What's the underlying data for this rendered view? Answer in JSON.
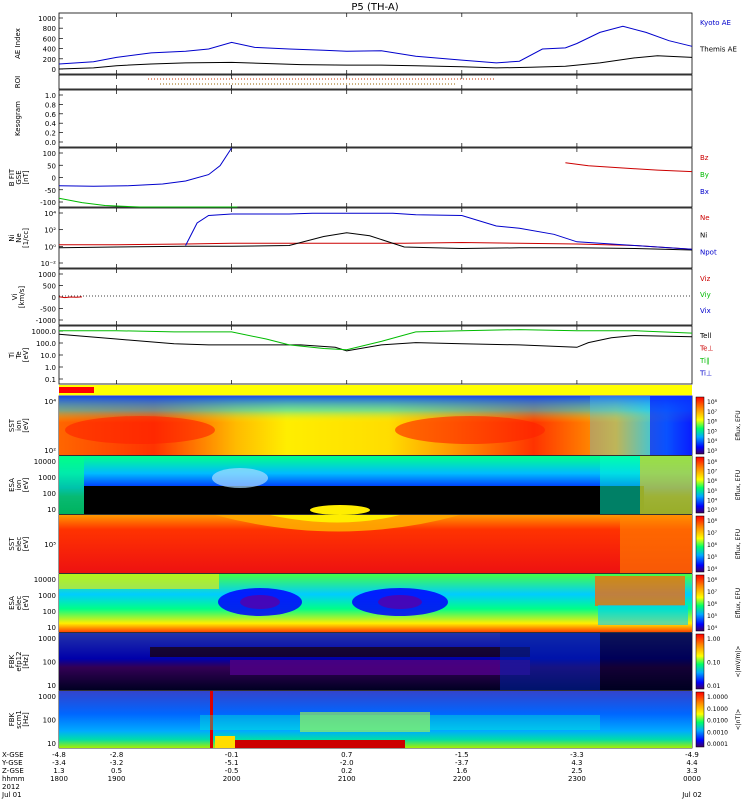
{
  "title": "P5 (TH-A)",
  "time_axis": {
    "start_hour": 18.5,
    "end_hour": 24.0,
    "ticks": [
      {
        "label": "1900",
        "hour": 19.0,
        "xgse": "-2.8",
        "ygse": "-3.2",
        "zgse": "0.5"
      },
      {
        "label": "2000",
        "hour": 20.0,
        "xgse": "-0.1",
        "ygse": "-5.1",
        "zgse": "-0.5"
      },
      {
        "label": "2100",
        "hour": 21.0,
        "xgse": "0.7",
        "ygse": "-2.0",
        "zgse": "0.2"
      },
      {
        "label": "2200",
        "hour": 22.0,
        "xgse": "-1.5",
        "ygse": "-3.7",
        "zgse": "1.6"
      },
      {
        "label": "2300",
        "hour": 23.0,
        "xgse": "-3.3",
        "ygse": "4.3",
        "zgse": "2.5"
      }
    ],
    "start": {
      "label": "1800",
      "xgse": "-4.8",
      "ygse": "-3.4",
      "zgse": "1.3"
    },
    "end": {
      "label": "0000",
      "xgse": "-4.9",
      "ygse": "4.4",
      "zgse": "3.3"
    },
    "row_labels": [
      "X-GSE",
      "Y-GSE",
      "Z-GSE",
      "hhmm",
      "2012"
    ],
    "start_date": "Jul 01",
    "end_date": "Jul 02"
  },
  "colors": {
    "blue": "#0000cc",
    "green": "#00bb00",
    "red": "#cc0000",
    "black": "#000000"
  },
  "chart_data": [
    {
      "type": "line",
      "ylabel": "AE Index",
      "yticks": [
        "1000",
        "800",
        "600",
        "400",
        "200",
        "0"
      ],
      "ylim": [
        -50,
        1050
      ],
      "series": [
        {
          "name": "Kyoto AE",
          "color": "#0000cc",
          "x": [
            18.5,
            18.8,
            19.0,
            19.3,
            19.6,
            19.8,
            20.0,
            20.2,
            20.5,
            20.8,
            21.0,
            21.3,
            21.6,
            22.0,
            22.3,
            22.5,
            22.7,
            22.9,
            23.0,
            23.2,
            23.4,
            23.6,
            23.8,
            24.0
          ],
          "y": [
            130,
            170,
            250,
            330,
            360,
            400,
            520,
            430,
            400,
            380,
            360,
            370,
            270,
            200,
            150,
            180,
            400,
            420,
            500,
            700,
            810,
            700,
            550,
            450
          ]
        },
        {
          "name": "Themis AE",
          "color": "#000000",
          "x": [
            18.5,
            18.8,
            19.0,
            19.3,
            19.6,
            20.0,
            20.3,
            20.6,
            21.0,
            21.3,
            21.6,
            22.0,
            22.3,
            22.6,
            22.9,
            23.2,
            23.5,
            23.7,
            24.0
          ],
          "y": [
            40,
            60,
            100,
            130,
            150,
            160,
            140,
            120,
            110,
            110,
            100,
            80,
            60,
            70,
            90,
            150,
            240,
            280,
            250
          ]
        }
      ]
    },
    {
      "type": "line",
      "ylabel": "ROI"
    },
    {
      "type": "line",
      "ylabel": "Kesogram",
      "yticks": [
        "1.0",
        "0.8",
        "0.6",
        "0.4",
        "0.2",
        "0.0"
      ],
      "ylim": [
        0,
        1
      ]
    },
    {
      "type": "line",
      "ylabel": "B FIT\nGSE\n[nT]",
      "yticks": [
        "100",
        "50",
        "0",
        "-50",
        "-100"
      ],
      "ylim": [
        -100,
        100
      ],
      "series": [
        {
          "name": "Bz",
          "color": "#cc0000",
          "x": [
            22.9,
            23.1,
            23.3,
            23.5,
            23.7,
            24.0
          ],
          "y": [
            50,
            40,
            35,
            30,
            25,
            20
          ]
        },
        {
          "name": "By",
          "color": "#00bb00",
          "x": [
            18.5,
            18.7,
            18.9,
            19.2,
            19.6,
            20.0,
            20.05
          ],
          "y": [
            -70,
            -85,
            -95,
            -100,
            -100,
            -100,
            -100
          ]
        },
        {
          "name": "Bx",
          "color": "#0000cc",
          "x": [
            18.5,
            18.8,
            19.1,
            19.4,
            19.6,
            19.8,
            19.9,
            20.0
          ],
          "y": [
            -28,
            -30,
            -28,
            -22,
            -12,
            10,
            40,
            100
          ]
        }
      ]
    },
    {
      "type": "line",
      "ylabel": "Ni\nNe\n[1/cc]",
      "yticks": [
        "10⁴",
        "10²",
        "10⁰",
        "10⁻²"
      ],
      "ylim": [
        -3,
        5
      ],
      "series": [
        {
          "name": "Ne",
          "color": "#cc0000",
          "x": [
            18.5,
            19.0,
            19.6,
            20.0,
            20.5,
            21.0,
            21.5,
            22.0,
            22.5,
            23.0,
            23.5,
            24.0
          ],
          "y": [
            0.1,
            0.1,
            0.2,
            0.3,
            0.3,
            0.3,
            0.3,
            0.4,
            0.3,
            0.2,
            0.0,
            -0.5
          ]
        },
        {
          "name": "Ni",
          "color": "#000000",
          "x": [
            18.5,
            19.0,
            19.6,
            20.0,
            20.5,
            20.8,
            21.0,
            21.2,
            21.5,
            22.0,
            22.5,
            23.0,
            23.5,
            24.0
          ],
          "y": [
            -0.3,
            -0.2,
            -0.1,
            -0.1,
            0.0,
            1.2,
            1.7,
            1.3,
            -0.2,
            -0.4,
            -0.3,
            -0.3,
            -0.4,
            -0.6
          ]
        },
        {
          "name": "Npot",
          "color": "#0000cc",
          "x": [
            19.6,
            19.7,
            19.8,
            20.0,
            20.5,
            20.7,
            21.4,
            21.6,
            22.0,
            22.3,
            22.5,
            22.8,
            23.0,
            23.5,
            24.0
          ],
          "y": [
            0.0,
            3.0,
            4.0,
            4.2,
            4.2,
            4.3,
            4.3,
            4.1,
            4.0,
            2.6,
            2.3,
            1.5,
            0.5,
            0.0,
            -0.5
          ]
        }
      ]
    },
    {
      "type": "line",
      "ylabel": "Vi\n[km/s]",
      "yticks": [
        "1000",
        "500",
        "0",
        "-500",
        "-1000"
      ],
      "ylim": [
        -1000,
        1000
      ],
      "series": [
        {
          "name": "Viz",
          "color": "#cc0000",
          "x": [
            18.5,
            18.55,
            18.6,
            18.65,
            18.7
          ],
          "y": [
            10,
            -20,
            0,
            -10,
            5
          ]
        },
        {
          "name": "Viy",
          "color": "#00bb00",
          "x": [],
          "y": []
        },
        {
          "name": "Vix",
          "color": "#0000cc",
          "x": [],
          "y": []
        }
      ]
    },
    {
      "type": "line",
      "ylabel": "Ti\nTe\n[eV]",
      "yticks": [
        "1000.0",
        "100.0",
        "10.0",
        "1.0",
        "0.1"
      ],
      "ylim": [
        -1.3,
        3.6
      ],
      "series": [
        {
          "name": "Tell",
          "color": "#000000",
          "x": [
            18.5,
            19.0,
            19.5,
            19.8,
            20.0,
            20.3,
            20.6,
            20.9,
            21.0,
            21.3,
            21.6,
            22.0,
            22.5,
            23.0,
            23.1,
            23.3,
            23.5,
            24.0
          ],
          "y": [
            2.9,
            2.5,
            2.1,
            2.0,
            2.0,
            2.0,
            2.0,
            1.8,
            1.5,
            2.0,
            2.2,
            2.1,
            2.0,
            1.8,
            2.2,
            2.6,
            2.8,
            2.7
          ]
        },
        {
          "name": "Te⊥",
          "color": "#cc0000",
          "x": [],
          "y": []
        },
        {
          "name": "Ti∥",
          "color": "#00bb00",
          "x": [
            18.5,
            19.0,
            19.5,
            20.0,
            20.3,
            20.5,
            20.8,
            21.0,
            21.3,
            21.6,
            22.0,
            22.5,
            23.0,
            23.5,
            24.0
          ],
          "y": [
            3.2,
            3.2,
            3.1,
            3.1,
            2.5,
            2.0,
            1.7,
            1.6,
            2.3,
            3.1,
            3.2,
            3.3,
            3.2,
            3.2,
            3.0
          ]
        },
        {
          "name": "Ti⊥",
          "color": "#0000cc",
          "x": [],
          "y": []
        }
      ]
    },
    {
      "type": "heatmap",
      "ylabel": "SST\nion\n[eV]",
      "yticks": [
        "10⁴",
        "10²"
      ],
      "colorbar_label": "Eflux, EFU",
      "colorbar_ticks": [
        "10⁸",
        "10⁷",
        "10⁶",
        "10⁵",
        "10⁴",
        "10³"
      ]
    },
    {
      "type": "heatmap",
      "ylabel": "ESA\nion\n[eV]",
      "yticks": [
        "10000",
        "1000",
        "100",
        "10"
      ],
      "colorbar_label": "Eflux, EFU",
      "colorbar_ticks": [
        "10⁸",
        "10⁷",
        "10⁶",
        "10⁵",
        "10⁴",
        "10³"
      ]
    },
    {
      "type": "heatmap",
      "ylabel": "SST\nelec\n[eV]",
      "yticks": [
        "10⁵"
      ],
      "colorbar_label": "Eflux, EFU",
      "colorbar_ticks": [
        "10⁸",
        "10⁷",
        "10⁶",
        "10⁵",
        "10⁴"
      ]
    },
    {
      "type": "heatmap",
      "ylabel": "ESA\nelec\n[eV]",
      "yticks": [
        "10000",
        "1000",
        "100",
        "10"
      ],
      "colorbar_label": "Eflux, EFU",
      "colorbar_ticks": [
        "10⁸",
        "10⁷",
        "10⁶",
        "10⁵",
        "10⁴"
      ]
    },
    {
      "type": "heatmap",
      "ylabel": "FBK\nefp12\n[Hz]",
      "yticks": [
        "1000",
        "100",
        "10"
      ],
      "colorbar_label": "<|mV/m|>",
      "colorbar_ticks": [
        "1.00",
        "0.10",
        "0.01"
      ]
    },
    {
      "type": "heatmap",
      "ylabel": "FBK\nscm1\n[Hz]",
      "yticks": [
        "1000",
        "100",
        "10"
      ],
      "colorbar_label": "<|nT|>",
      "colorbar_ticks": [
        "1.0000",
        "0.1000",
        "0.0100",
        "0.0010",
        "0.0001"
      ]
    }
  ]
}
